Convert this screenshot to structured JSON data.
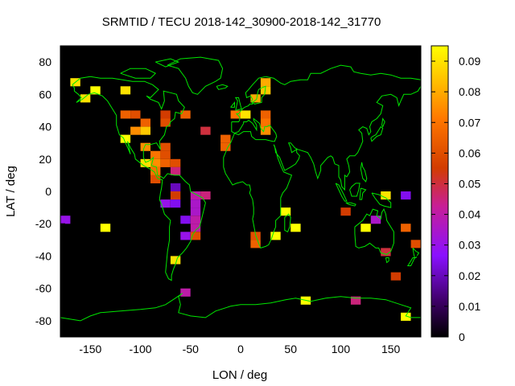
{
  "chart_data": {
    "type": "heatmap",
    "title": "SRMTID / TECU 2018-142_30900-2018-142_31770",
    "xlabel": "LON / deg",
    "ylabel": "LAT / deg",
    "xlim": [
      -180,
      180
    ],
    "ylim": [
      -90,
      90
    ],
    "xticks": [
      -150,
      -100,
      -50,
      0,
      50,
      100,
      150
    ],
    "yticks": [
      -80,
      -60,
      -40,
      -20,
      0,
      20,
      40,
      60,
      80
    ],
    "colorbar": {
      "min": 0,
      "max": 0.095,
      "ticks": [
        0,
        0.01,
        0.02,
        0.03,
        0.04,
        0.05,
        0.06,
        0.07,
        0.08,
        0.09
      ],
      "tick_labels": [
        "0",
        "0.01",
        "0.02",
        "0.03",
        "0.04",
        "0.05",
        "0.06",
        "0.07",
        "0.08",
        "0.09"
      ],
      "colormap": "black-purple-red-orange-yellow"
    },
    "background_color": "#000000",
    "coastline_color": "#00e600",
    "cell_size_deg": [
      10,
      5
    ],
    "cells": [
      {
        "lon": -165,
        "lat": 67.5,
        "value": 0.09
      },
      {
        "lon": -155,
        "lat": 57.5,
        "value": 0.09
      },
      {
        "lon": -145,
        "lat": 62.5,
        "value": 0.095
      },
      {
        "lon": -115,
        "lat": 62.5,
        "value": 0.09
      },
      {
        "lon": -115,
        "lat": 47.5,
        "value": 0.065
      },
      {
        "lon": -105,
        "lat": 47.5,
        "value": 0.06
      },
      {
        "lon": -95,
        "lat": 42.5,
        "value": 0.065
      },
      {
        "lon": -105,
        "lat": 37.5,
        "value": 0.075
      },
      {
        "lon": -95,
        "lat": 37.5,
        "value": 0.085
      },
      {
        "lon": -115,
        "lat": 32.5,
        "value": 0.095
      },
      {
        "lon": -75,
        "lat": 47.5,
        "value": 0.055
      },
      {
        "lon": -75,
        "lat": 42.5,
        "value": 0.06
      },
      {
        "lon": -55,
        "lat": 47.5,
        "value": 0.065
      },
      {
        "lon": -95,
        "lat": 27.5,
        "value": 0.075
      },
      {
        "lon": -75,
        "lat": 27.5,
        "value": 0.06
      },
      {
        "lon": -85,
        "lat": 22.5,
        "value": 0.07
      },
      {
        "lon": -75,
        "lat": 22.5,
        "value": 0.06
      },
      {
        "lon": -95,
        "lat": 17.5,
        "value": 0.09
      },
      {
        "lon": -85,
        "lat": 17.5,
        "value": 0.075
      },
      {
        "lon": -75,
        "lat": 17.5,
        "value": 0.065
      },
      {
        "lon": -65,
        "lat": 17.5,
        "value": 0.06
      },
      {
        "lon": -85,
        "lat": 12.5,
        "value": 0.07
      },
      {
        "lon": -65,
        "lat": 12.5,
        "value": 0.045
      },
      {
        "lon": -85,
        "lat": 7.5,
        "value": 0.06
      },
      {
        "lon": -35,
        "lat": 37.5,
        "value": 0.05
      },
      {
        "lon": -65,
        "lat": 2.5,
        "value": 0.02
      },
      {
        "lon": -65,
        "lat": -2.5,
        "value": 0.055
      },
      {
        "lon": -45,
        "lat": -2.5,
        "value": 0.04
      },
      {
        "lon": -35,
        "lat": -2.5,
        "value": 0.045
      },
      {
        "lon": -75,
        "lat": -7.5,
        "value": 0.03
      },
      {
        "lon": -65,
        "lat": -7.5,
        "value": 0.025
      },
      {
        "lon": -45,
        "lat": -7.5,
        "value": 0.035
      },
      {
        "lon": -45,
        "lat": -12.5,
        "value": 0.035
      },
      {
        "lon": -55,
        "lat": -17.5,
        "value": 0.025
      },
      {
        "lon": -45,
        "lat": -17.5,
        "value": 0.04
      },
      {
        "lon": -45,
        "lat": -22.5,
        "value": 0.04
      },
      {
        "lon": -55,
        "lat": -27.5,
        "value": 0.03
      },
      {
        "lon": -45,
        "lat": -27.5,
        "value": 0.06
      },
      {
        "lon": -65,
        "lat": -42.5,
        "value": 0.09
      },
      {
        "lon": -55,
        "lat": -62.5,
        "value": 0.04
      },
      {
        "lon": -175,
        "lat": -17.5,
        "value": 0.03
      },
      {
        "lon": -135,
        "lat": -22.5,
        "value": 0.095
      },
      {
        "lon": 5,
        "lat": 47.5,
        "value": 0.09
      },
      {
        "lon": -5,
        "lat": 47.5,
        "value": 0.07
      },
      {
        "lon": -15,
        "lat": 32.5,
        "value": 0.065
      },
      {
        "lon": -15,
        "lat": 27.5,
        "value": 0.065
      },
      {
        "lon": 15,
        "lat": 57.5,
        "value": 0.08
      },
      {
        "lon": 25,
        "lat": 67.5,
        "value": 0.08
      },
      {
        "lon": 25,
        "lat": 62.5,
        "value": 0.085
      },
      {
        "lon": 25,
        "lat": 47.5,
        "value": 0.065
      },
      {
        "lon": 25,
        "lat": 42.5,
        "value": 0.07
      },
      {
        "lon": 25,
        "lat": 37.5,
        "value": 0.075
      },
      {
        "lon": 15,
        "lat": -27.5,
        "value": 0.06
      },
      {
        "lon": 15,
        "lat": -32.5,
        "value": 0.065
      },
      {
        "lon": 35,
        "lat": -27.5,
        "value": 0.095
      },
      {
        "lon": 45,
        "lat": -12.5,
        "value": 0.095
      },
      {
        "lon": 55,
        "lat": -22.5,
        "value": 0.095
      },
      {
        "lon": 65,
        "lat": -67.5,
        "value": 0.095
      },
      {
        "lon": 105,
        "lat": -12.5,
        "value": 0.055
      },
      {
        "lon": 115,
        "lat": -67.5,
        "value": 0.045
      },
      {
        "lon": 125,
        "lat": -22.5,
        "value": 0.095
      },
      {
        "lon": 135,
        "lat": -17.5,
        "value": 0.035
      },
      {
        "lon": 145,
        "lat": -2.5,
        "value": 0.09
      },
      {
        "lon": 165,
        "lat": -2.5,
        "value": 0.025
      },
      {
        "lon": 145,
        "lat": -37.5,
        "value": 0.05
      },
      {
        "lon": 155,
        "lat": -52.5,
        "value": 0.055
      },
      {
        "lon": 165,
        "lat": -22.5,
        "value": 0.065
      },
      {
        "lon": 175,
        "lat": -32.5,
        "value": 0.06
      },
      {
        "lon": 165,
        "lat": -77.5,
        "value": 0.095
      }
    ]
  }
}
